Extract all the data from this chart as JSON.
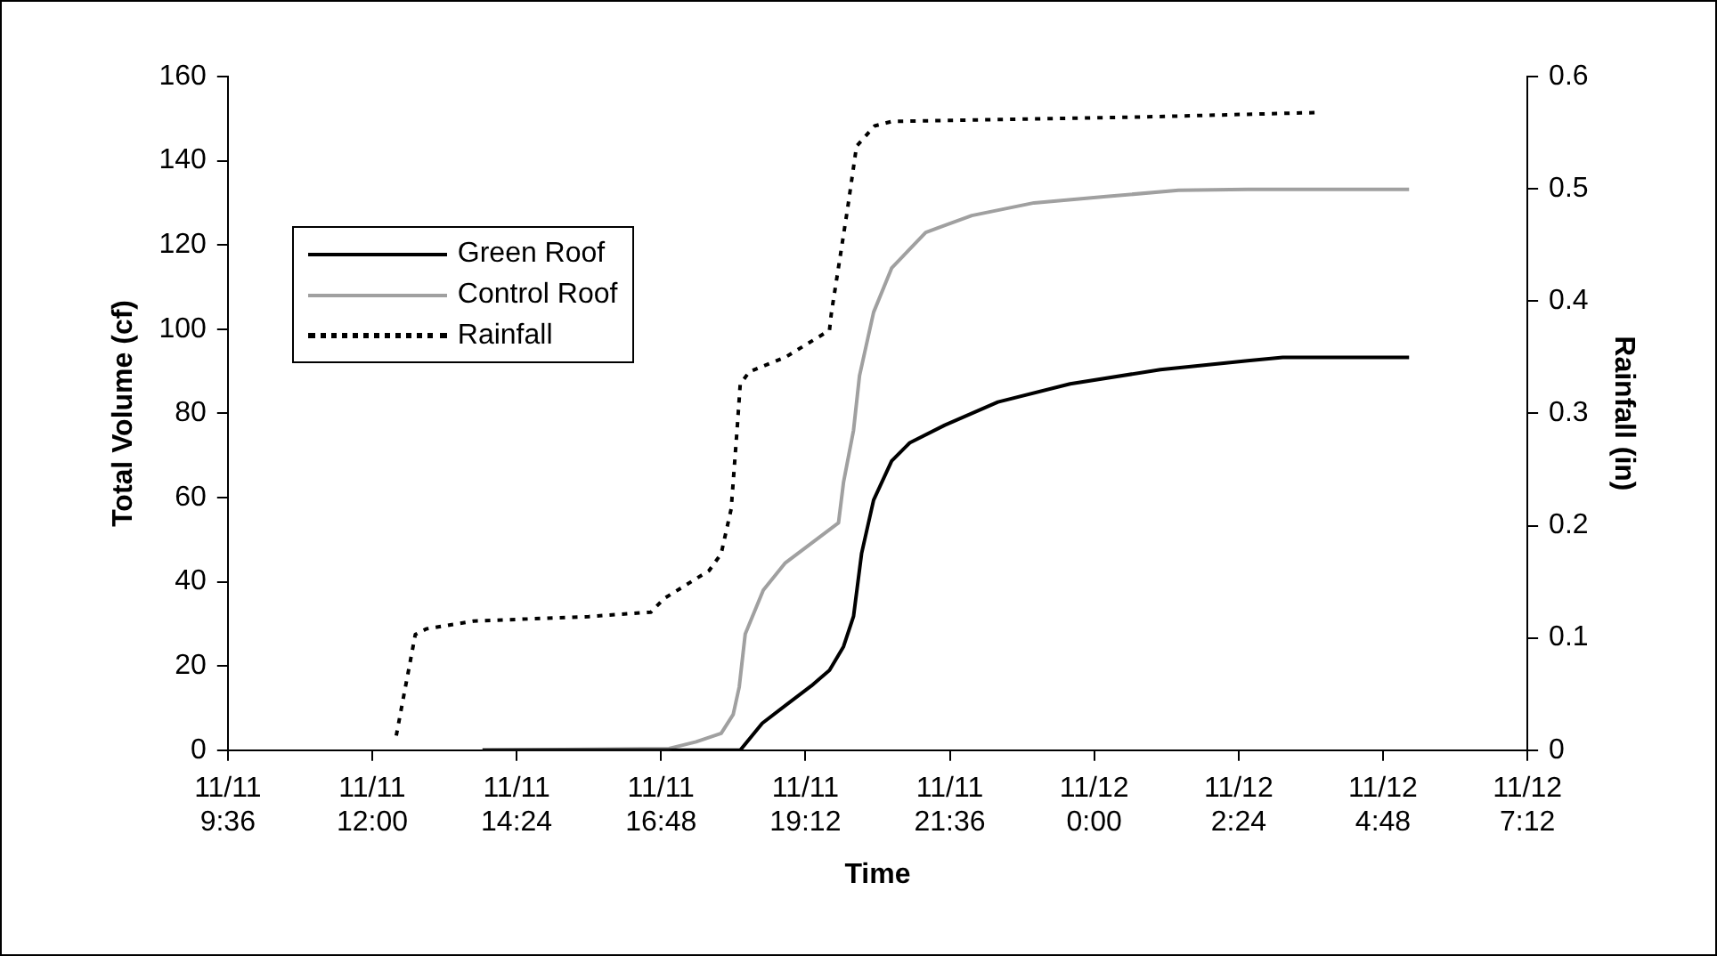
{
  "chart_data": {
    "type": "line",
    "xlabel": "Time",
    "ylabel": "Total Volume (cf)",
    "y2label": "Rainfall (in)",
    "xlim": [
      "--11-11T09:36",
      "--11-12T07:12"
    ],
    "xticks": [
      {
        "value": "--11-11T09:36",
        "label": "11/11 9:36"
      },
      {
        "value": "--11-11T12:00",
        "label": "11/11 12:00"
      },
      {
        "value": "--11-11T14:24",
        "label": "11/11 14:24"
      },
      {
        "value": "--11-11T16:48",
        "label": "11/11 16:48"
      },
      {
        "value": "--11-11T19:12",
        "label": "11/11 19:12"
      },
      {
        "value": "--11-11T21:36",
        "label": "11/11 21:36"
      },
      {
        "value": "--11-12T00:00",
        "label": "11/12 0:00"
      },
      {
        "value": "--11-12T02:24",
        "label": "11/12 2:24"
      },
      {
        "value": "--11-12T04:48",
        "label": "11/12 4:48"
      },
      {
        "value": "--11-12T07:12",
        "label": "11/12 7:12"
      }
    ],
    "ylim": [
      0,
      160
    ],
    "yticks": [
      0,
      20,
      40,
      60,
      80,
      100,
      120,
      140,
      160
    ],
    "y2lim": [
      0,
      0.6
    ],
    "y2ticks": [
      0,
      0.1,
      0.2,
      0.3,
      0.4,
      0.5,
      0.6
    ],
    "grid": false,
    "legend": "top left",
    "marker": "none",
    "series": [
      {
        "name": "Green Roof",
        "color": "#000000",
        "line_style": "solid",
        "x": [
          "--11-11T13:50",
          "--11-11T18:07",
          "--11-11T18:29",
          "--11-11T18:52",
          "--11-11T19:18",
          "--11-11T19:36",
          "--11-11T19:50",
          "--11-11T20:00",
          "--11-11T20:08",
          "--11-11T20:20",
          "--11-11T20:38",
          "--11-11T20:56",
          "--11-11T21:31",
          "--11-11T22:24",
          "--11-11T23:36",
          "--11-12T01:06",
          "--11-12T02:33",
          "--11-12T03:08",
          "--11-12T05:14"
        ],
        "values": [
          0,
          0,
          6.4,
          10.6,
          15.3,
          19,
          24.6,
          31.8,
          46.7,
          59.4,
          68.7,
          73,
          77.2,
          82.7,
          87,
          90.4,
          92.5,
          93.3,
          93.3
        ]
      },
      {
        "name": "Control Roof",
        "color": "#a0a0a0",
        "line_style": "solid",
        "x": [
          "--11-11T13:50",
          "--11-11T16:56",
          "--11-11T17:23",
          "--11-11T17:48",
          "--11-11T18:00",
          "--11-11T18:06",
          "--11-11T18:12",
          "--11-11T18:30",
          "--11-11T18:52",
          "--11-11T19:45",
          "--11-11T19:50",
          "--11-11T20:00",
          "--11-11T20:06",
          "--11-11T20:20",
          "--11-11T20:38",
          "--11-11T21:12",
          "--11-11T21:58",
          "--11-11T23:00",
          "--11-12T00:12",
          "--11-12T01:24",
          "--11-12T02:33",
          "--11-12T05:14"
        ],
        "values": [
          0,
          0.4,
          2,
          4,
          8.5,
          15,
          27.6,
          38,
          44.5,
          54,
          63.6,
          76,
          89,
          104,
          114.5,
          123,
          127,
          130,
          131.5,
          133,
          133.2,
          133.2
        ]
      },
      {
        "name": "Rainfall",
        "color": "#000000",
        "line_style": "dotted",
        "axis": "y2",
        "x": [
          "--11-11T12:24",
          "--11-11T12:43",
          "--11-11T12:54",
          "--11-11T13:41",
          "--11-11T15:36",
          "--11-11T16:38",
          "--11-11T16:51",
          "--11-11T17:36",
          "--11-11T17:48",
          "--11-11T17:58",
          "--11-11T18:04",
          "--11-11T18:07",
          "--11-11T18:16",
          "--11-11T18:52",
          "--11-11T19:36",
          "--11-11T19:38",
          "--11-11T19:45",
          "--11-11T19:54",
          "--11-11T20:03",
          "--11-11T20:21",
          "--11-11T20:38",
          "--11-12T00:48",
          "--11-12T03:44"
        ],
        "values": [
          0.013,
          0.103,
          0.108,
          0.115,
          0.119,
          0.123,
          0.135,
          0.16,
          0.175,
          0.215,
          0.287,
          0.326,
          0.337,
          0.35,
          0.374,
          0.39,
          0.43,
          0.482,
          0.538,
          0.556,
          0.56,
          0.564,
          0.568
        ]
      }
    ]
  }
}
